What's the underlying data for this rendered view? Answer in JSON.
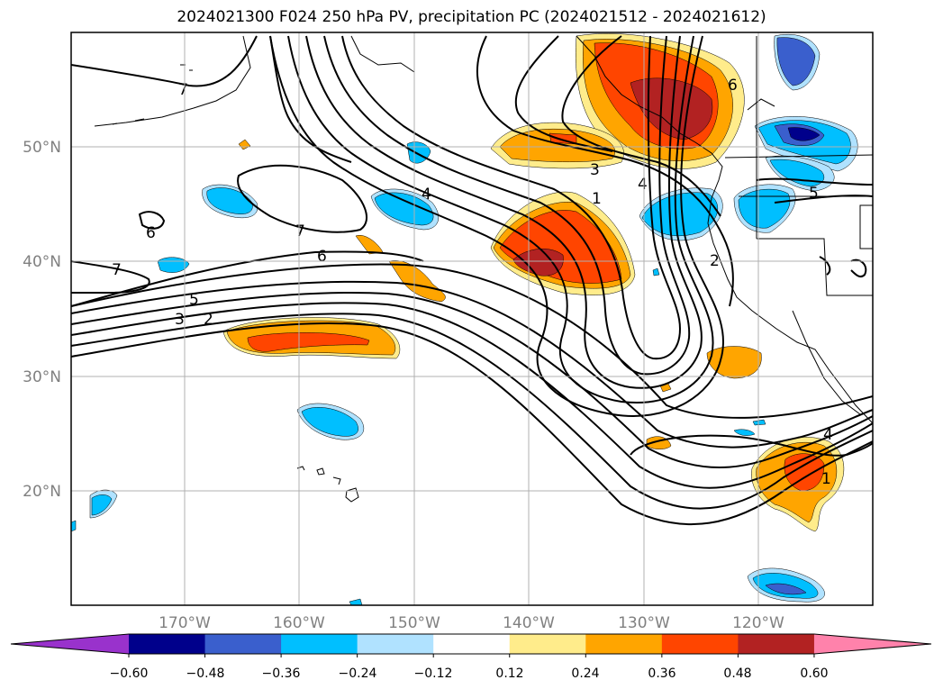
{
  "title": "2024021300 F024 250 hPa PV, precipitation PC (2024021512 - 2024021612)",
  "lat_labels": [
    "50°N",
    "40°N",
    "30°N",
    "20°N"
  ],
  "lon_labels": [
    "170°W",
    "160°W",
    "150°W",
    "140°W",
    "130°W",
    "120°W"
  ],
  "contour_labels": [
    "7",
    "6",
    "7",
    "6",
    "7",
    "5",
    "3",
    "2",
    "4",
    "3",
    "1",
    "4",
    "2",
    "5",
    "4",
    "1",
    "6"
  ],
  "colorbar": {
    "tick_labels": [
      "−0.60",
      "−0.48",
      "−0.36",
      "−0.24",
      "−0.12",
      "0.12",
      "0.24",
      "0.36",
      "0.48",
      "0.60"
    ],
    "colors": [
      "#9932cc",
      "#00008b",
      "#3a5fcd",
      "#00bfff",
      "#b0e2ff",
      "#ffffff",
      "#ffec8b",
      "#ffa500",
      "#ff4500",
      "#b22222",
      "#ff82ab"
    ]
  }
}
